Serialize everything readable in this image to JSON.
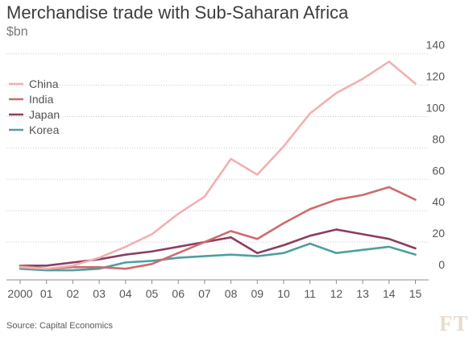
{
  "title": "Merchandise trade with Sub-Saharan Africa",
  "unit": "$bn",
  "source": "Source: Capital Economics",
  "logo": "FT",
  "chart_data": {
    "type": "line",
    "title": "Merchandise trade with Sub-Saharan Africa",
    "ylabel": "$bn",
    "x": [
      "2000",
      "01",
      "02",
      "03",
      "04",
      "05",
      "06",
      "07",
      "08",
      "09",
      "10",
      "11",
      "12",
      "13",
      "14",
      "15"
    ],
    "ylim": [
      0,
      140
    ],
    "yticks": [
      0,
      20,
      40,
      60,
      80,
      100,
      120,
      140
    ],
    "grid": true,
    "legend_position": "top-left",
    "series": [
      {
        "name": "China",
        "color": "#f2b0b2",
        "values": [
          4,
          3,
          5,
          10,
          17,
          25,
          38,
          49,
          73,
          63,
          81,
          102,
          115,
          124,
          135,
          121
        ]
      },
      {
        "name": "India",
        "color": "#cd6b6e",
        "values": [
          5,
          3,
          4,
          4,
          3,
          6,
          13,
          20,
          27,
          22,
          32,
          41,
          47,
          50,
          55,
          47
        ]
      },
      {
        "name": "Japan",
        "color": "#8b3f62",
        "values": [
          5,
          5,
          7,
          9,
          12,
          14,
          17,
          20,
          23,
          13,
          18,
          24,
          28,
          25,
          22,
          16
        ]
      },
      {
        "name": "Korea",
        "color": "#4e9fa1",
        "values": [
          3,
          2,
          2,
          3,
          7,
          8,
          10,
          11,
          12,
          11,
          13,
          19,
          13,
          15,
          17,
          12
        ]
      }
    ]
  }
}
